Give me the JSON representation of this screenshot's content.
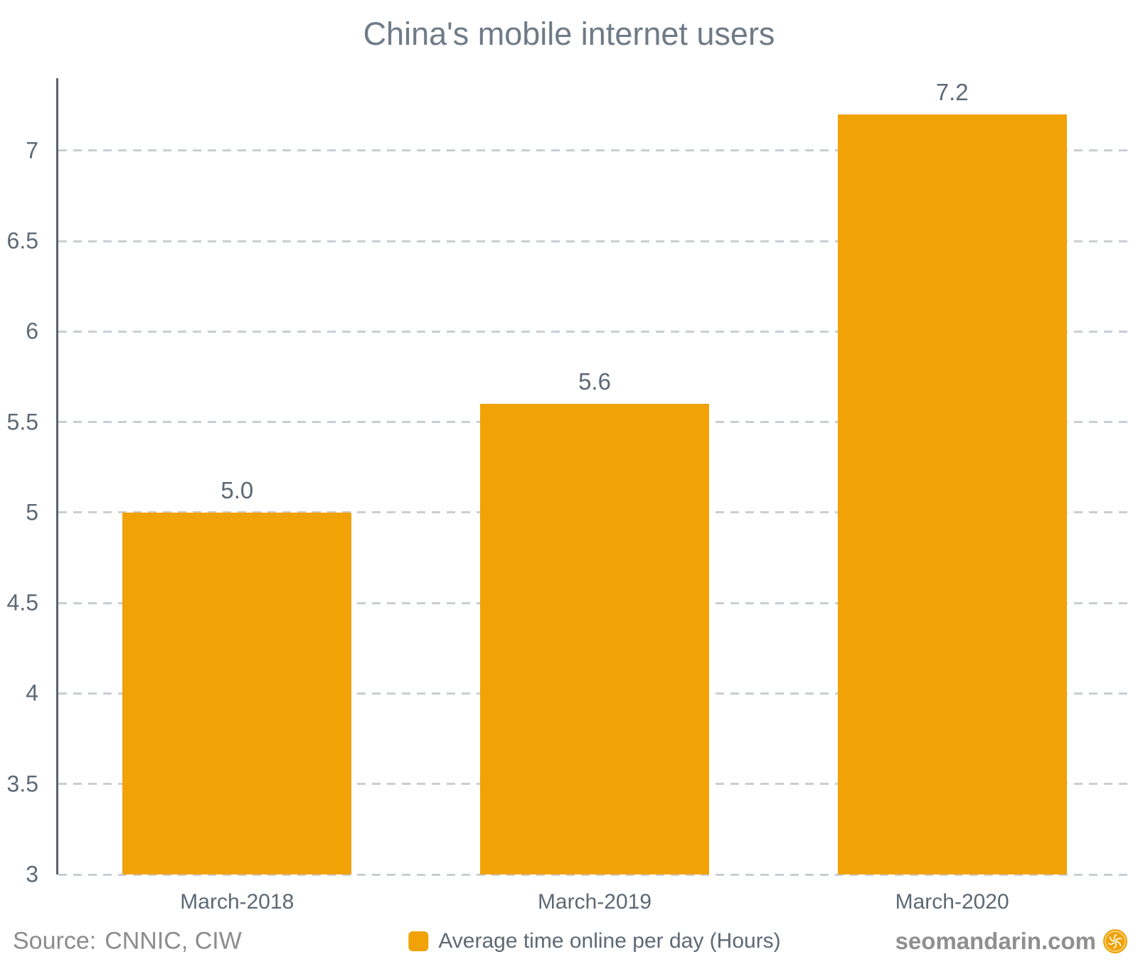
{
  "title": "China's mobile internet users",
  "source": {
    "label": "Source:",
    "value": "CNNIC, CIW"
  },
  "legend": {
    "label": "Average time online per day (Hours)"
  },
  "watermark": {
    "text": "seomandarin.com",
    "icon": "mandarin-orange-icon"
  },
  "colors": {
    "background": "#FFFFFF",
    "bar": "#F0A206",
    "title_text": "#6E7B87",
    "axis_text": "#5D6974",
    "axis_line": "#58626E",
    "gridline": "#C9CED4",
    "source_text": "#8C8C8C",
    "watermark_text": "#8F8F8F"
  },
  "chart_data": {
    "type": "bar",
    "title": "China's mobile internet users",
    "categories": [
      "March-2018",
      "March-2019",
      "March-2020"
    ],
    "values": [
      5.0,
      5.6,
      7.2
    ],
    "value_labels": [
      "5.0",
      "5.6",
      "7.2"
    ],
    "series_name": "Average time online per day (Hours)",
    "xlabel": "",
    "ylabel": "",
    "ylim": [
      3,
      7.4
    ],
    "yticks": [
      3,
      3.5,
      4,
      4.5,
      5,
      5.5,
      6,
      6.5,
      7
    ],
    "grid": "horizontal-dashed",
    "legend_position": "bottom-center",
    "bar_color": "#F0A206"
  }
}
